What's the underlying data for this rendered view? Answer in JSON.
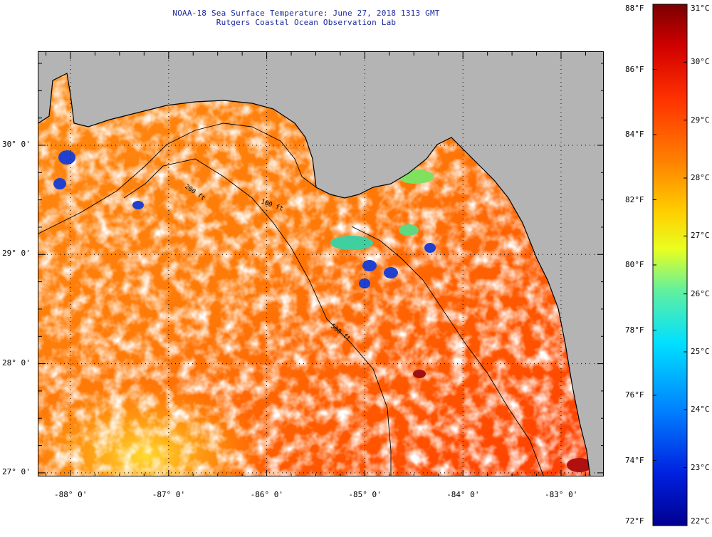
{
  "header": {
    "title_line1": "NOAA-18 Sea Surface Temperature:  June 27, 2018 1313 GMT",
    "title_line2": "Rutgers Coastal Ocean Observation Lab"
  },
  "map": {
    "latitude_labels": [
      "30° 0'",
      "29° 0'",
      "28° 0'",
      "27° 0'"
    ],
    "longitude_labels": [
      "-88° 0'",
      "-87° 0'",
      "-86° 0'",
      "-85° 0'",
      "-84° 0'",
      "-83° 0'"
    ],
    "latitudes": [
      30,
      29,
      28,
      27
    ],
    "longitudes": [
      -88,
      -87,
      -86,
      -85,
      -84,
      -83
    ],
    "isobath_labels": [
      "200 ft",
      "100 ft",
      "500 ft"
    ],
    "colors": {
      "land": "#b4b4b4",
      "cloud_mask": "#ffffff",
      "coastline": "#000000",
      "warm": "#ff6a00",
      "cool": "#ffd000",
      "cold_spots": "#2040d0"
    }
  },
  "colorbar": {
    "fahrenheit_labels": [
      "88°F",
      "86°F",
      "84°F",
      "82°F",
      "80°F",
      "78°F",
      "76°F",
      "74°F",
      "72°F"
    ],
    "celsius_labels": [
      "31°C",
      "30°C",
      "29°C",
      "28°C",
      "27°C",
      "26°C",
      "25°C",
      "24°C",
      "23°C",
      "22°C"
    ],
    "fahrenheit_range": [
      72,
      88
    ],
    "celsius_range": [
      22,
      31
    ]
  }
}
